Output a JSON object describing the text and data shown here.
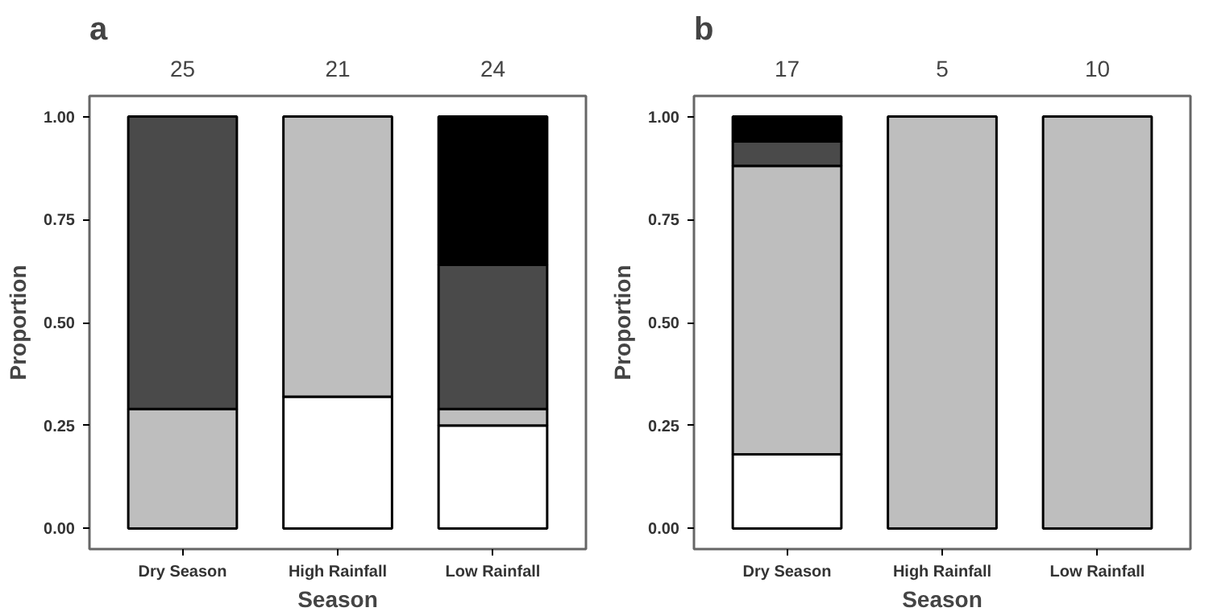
{
  "chart_data": [
    {
      "type": "bar",
      "title": "a",
      "xlabel": "Season",
      "ylabel": "Proportion",
      "stacked": true,
      "grid": false,
      "categories": [
        "Dry Season",
        "High Rainfall",
        "Low Rainfall"
      ],
      "series": [
        {
          "color": "#ffffff",
          "values": [
            0,
            0.32,
            0.25
          ]
        },
        {
          "color": "#bebebe",
          "values": [
            0.29,
            0.68,
            0.04
          ]
        },
        {
          "color": "#4a4a4a",
          "values": [
            0.71,
            0,
            0.35
          ]
        },
        {
          "color": "#000000",
          "values": [
            0,
            0,
            0.36
          ]
        }
      ],
      "ylim": [
        -0.05,
        1.05
      ],
      "yticks": [
        {
          "value": 0,
          "label": "0.00"
        },
        {
          "value": 0.25,
          "label": "0.25"
        },
        {
          "value": 0.5,
          "label": "0.50"
        },
        {
          "value": 0.75,
          "label": "0.75"
        },
        {
          "value": 1,
          "label": "1.00"
        }
      ],
      "annotations": [
        "25",
        "21",
        "24"
      ]
    },
    {
      "type": "bar",
      "title": "b",
      "xlabel": "Season",
      "ylabel": "Proportion",
      "stacked": true,
      "grid": false,
      "categories": [
        "Dry Season",
        "High Rainfall",
        "Low Rainfall"
      ],
      "series": [
        {
          "color": "#ffffff",
          "values": [
            0.18,
            0,
            0
          ]
        },
        {
          "color": "#bebebe",
          "values": [
            0.7,
            1,
            1
          ]
        },
        {
          "color": "#4a4a4a",
          "values": [
            0.06,
            0,
            0
          ]
        },
        {
          "color": "#000000",
          "values": [
            0.06,
            0,
            0
          ]
        }
      ],
      "ylim": [
        -0.05,
        1.05
      ],
      "yticks": [
        {
          "value": 0,
          "label": "0.00"
        },
        {
          "value": 0.25,
          "label": "0.25"
        },
        {
          "value": 0.5,
          "label": "0.50"
        },
        {
          "value": 0.75,
          "label": "0.75"
        },
        {
          "value": 1,
          "label": "1.00"
        }
      ],
      "annotations": [
        "17",
        "5",
        "10"
      ]
    }
  ]
}
